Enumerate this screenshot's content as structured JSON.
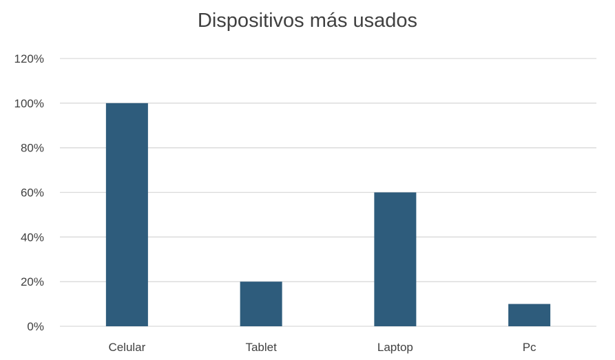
{
  "chart_data": {
    "type": "bar",
    "title": "Dispositivos más usados",
    "xlabel": "",
    "ylabel": "",
    "categories": [
      "Celular",
      "Tablet",
      "Laptop",
      "Pc"
    ],
    "values": [
      100,
      20,
      60,
      10
    ],
    "ylim": [
      0,
      120
    ],
    "yticks": [
      "0%",
      "20%",
      "40%",
      "60%",
      "80%",
      "100%",
      "120%"
    ],
    "grid": true,
    "legend": "none",
    "bar_color": "#2e5c7c",
    "grid_color": "#d9d9d9"
  }
}
